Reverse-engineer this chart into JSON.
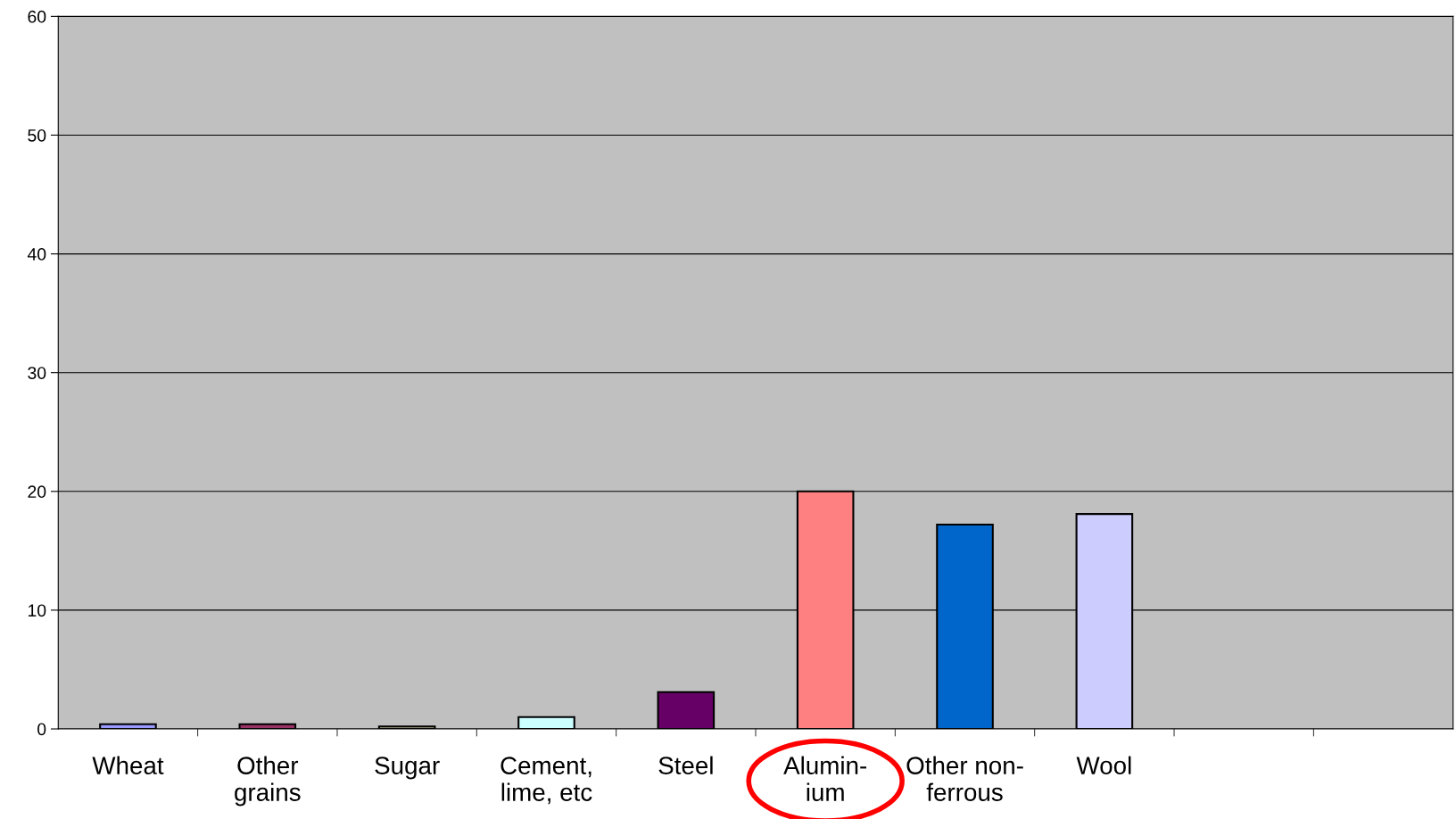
{
  "chart_data": {
    "type": "bar",
    "categories": [
      "Wheat",
      "Other\ngrains",
      "Sugar",
      "Cement,\nlime, etc",
      "Steel",
      "Alumin-\nium",
      "Other non-\nferrous",
      "Wool",
      null,
      null
    ],
    "values": [
      0.4,
      0.4,
      0.2,
      1.0,
      3.1,
      20,
      17.2,
      18.1,
      null,
      null
    ],
    "colors": [
      "#9999ff",
      "#993366",
      "#ffffcc",
      "#ccffff",
      "#660066",
      "#ff8080",
      "#0066cc",
      "#ccccff",
      "#000000",
      "#000000"
    ],
    "ylim": [
      0,
      60
    ],
    "yticks": [
      0,
      10,
      20,
      30,
      40,
      50,
      60
    ],
    "grid": "y",
    "legend": false
  }
}
